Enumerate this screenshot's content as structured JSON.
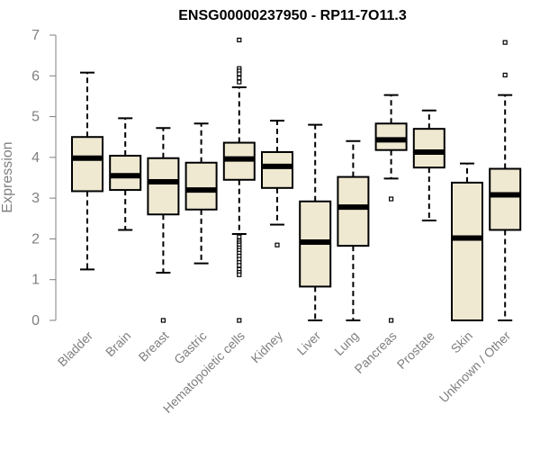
{
  "chart_data": {
    "type": "boxplot",
    "title": "ENSG00000237950 - RP11-7O11.3",
    "xlabel": "",
    "ylabel": "Expression",
    "ylim": [
      0,
      7
    ],
    "yticks": [
      0,
      1,
      2,
      3,
      4,
      5,
      6,
      7
    ],
    "box_color": "#efe9d2",
    "categories": [
      "Bladder",
      "Brain",
      "Breast",
      "Gastric",
      "Hematopoietic cells",
      "Kidney",
      "Liver",
      "Lung",
      "Pancreas",
      "Prostate",
      "Skin",
      "Unknown / Other"
    ],
    "boxes": [
      {
        "name": "Bladder",
        "min": 1.25,
        "q1": 3.17,
        "median": 3.98,
        "q3": 4.5,
        "max": 6.08,
        "outliers": []
      },
      {
        "name": "Brain",
        "min": 2.22,
        "q1": 3.2,
        "median": 3.55,
        "q3": 4.04,
        "max": 4.96,
        "outliers": []
      },
      {
        "name": "Breast",
        "min": 1.17,
        "q1": 2.6,
        "median": 3.4,
        "q3": 3.98,
        "max": 4.72,
        "outliers": [
          0.0
        ]
      },
      {
        "name": "Gastric",
        "min": 1.4,
        "q1": 2.72,
        "median": 3.2,
        "q3": 3.87,
        "max": 4.83,
        "outliers": []
      },
      {
        "name": "Hematopoietic cells",
        "min": 2.12,
        "q1": 3.45,
        "median": 3.96,
        "q3": 4.36,
        "max": 5.72,
        "outliers": [
          6.88,
          6.18,
          6.12,
          6.05,
          5.95,
          5.85,
          2.05,
          1.95,
          1.9,
          1.85,
          1.78,
          1.72,
          1.65,
          1.58,
          1.5,
          1.42,
          1.35,
          1.25,
          1.18,
          1.12,
          0.0
        ]
      },
      {
        "name": "Kidney",
        "min": 2.35,
        "q1": 3.25,
        "median": 3.78,
        "q3": 4.13,
        "max": 4.9,
        "outliers": [
          1.85
        ]
      },
      {
        "name": "Liver",
        "min": 0.0,
        "q1": 0.83,
        "median": 1.92,
        "q3": 2.92,
        "max": 4.8,
        "outliers": []
      },
      {
        "name": "Lung",
        "min": 0.0,
        "q1": 1.83,
        "median": 2.78,
        "q3": 3.52,
        "max": 4.4,
        "outliers": []
      },
      {
        "name": "Pancreas",
        "min": 3.48,
        "q1": 4.18,
        "median": 4.43,
        "q3": 4.83,
        "max": 5.53,
        "outliers": [
          2.98,
          0.0
        ]
      },
      {
        "name": "Prostate",
        "min": 2.45,
        "q1": 3.75,
        "median": 4.13,
        "q3": 4.7,
        "max": 5.15,
        "outliers": []
      },
      {
        "name": "Skin",
        "min": 0.0,
        "q1": 0.0,
        "median": 2.02,
        "q3": 3.38,
        "max": 3.85,
        "outliers": []
      },
      {
        "name": "Unknown / Other",
        "min": 0.0,
        "q1": 2.22,
        "median": 3.08,
        "q3": 3.72,
        "max": 5.53,
        "outliers": [
          6.82,
          6.02
        ]
      }
    ]
  }
}
